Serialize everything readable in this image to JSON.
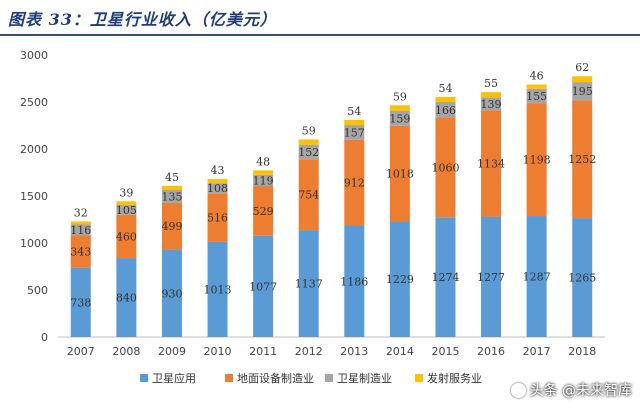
{
  "chart_data": {
    "type": "bar",
    "stacked": true,
    "title": "图表 33：卫星行业收入（亿美元）",
    "categories": [
      "2007",
      "2008",
      "2009",
      "2010",
      "2011",
      "2012",
      "2013",
      "2014",
      "2015",
      "2016",
      "2017",
      "2018"
    ],
    "series": [
      {
        "name": "卫星应用",
        "color": "#5b9bd5",
        "values": [
          738,
          840,
          930,
          1013,
          1077,
          1137,
          1186,
          1229,
          1274,
          1277,
          1287,
          1265
        ]
      },
      {
        "name": "地面设备制造业",
        "color": "#ed7d31",
        "values": [
          343,
          460,
          499,
          516,
          529,
          754,
          912,
          1018,
          1060,
          1134,
          1198,
          1252
        ]
      },
      {
        "name": "卫星制造业",
        "color": "#a5a5a5",
        "values": [
          116,
          105,
          135,
          108,
          119,
          152,
          157,
          159,
          166,
          139,
          155,
          195
        ]
      },
      {
        "name": "发射服务业",
        "color": "#ffc000",
        "values": [
          32,
          39,
          45,
          43,
          48,
          59,
          54,
          59,
          54,
          55,
          46,
          62
        ]
      }
    ],
    "ylim": [
      0,
      3000
    ],
    "yticks": [
      0,
      500,
      1000,
      1500,
      2000,
      2500,
      3000
    ],
    "grid": false,
    "legend": "bottom"
  },
  "watermark": {
    "text": "头条 @未来智库",
    "icon": "camera-icon"
  }
}
